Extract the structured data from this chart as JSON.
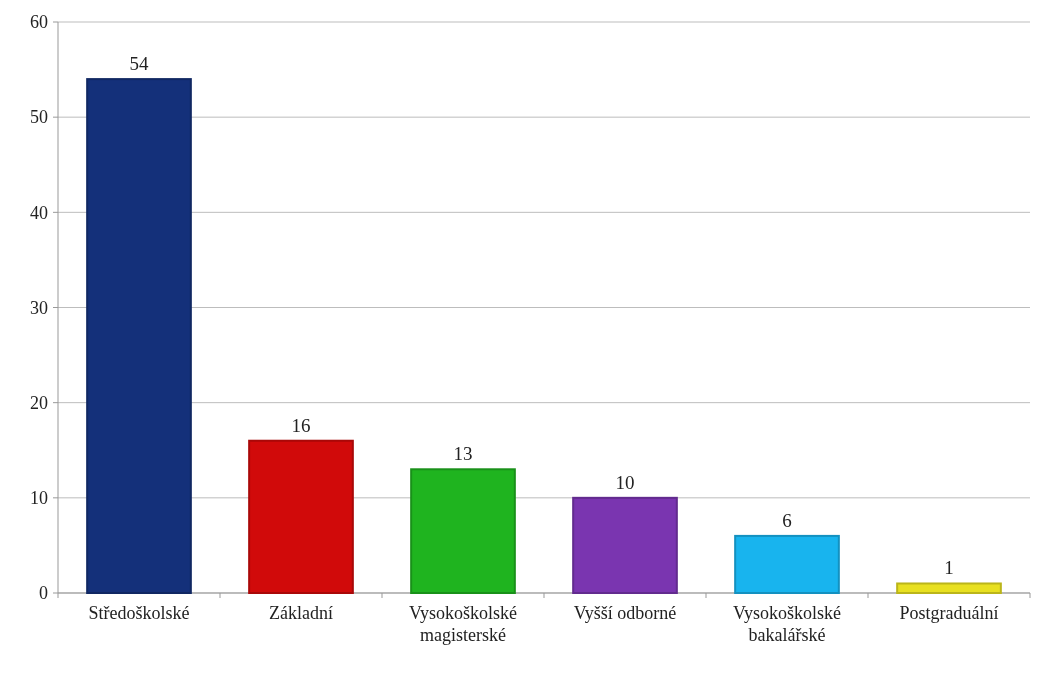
{
  "chart_data": {
    "type": "bar",
    "categories": [
      "Středoškolské",
      "Základní",
      "Vysokoškolské magisterské",
      "Vyšší odborné",
      "Vysokoškolské bakalářské",
      "Postgraduální"
    ],
    "values": [
      54,
      16,
      13,
      10,
      6,
      1
    ],
    "colors": [
      "#14307a",
      "#d10a0a",
      "#1fb41f",
      "#7a35b0",
      "#18b4ee",
      "#e8e020"
    ],
    "ylim": [
      0,
      60
    ],
    "yticks": [
      0,
      10,
      20,
      30,
      40,
      50,
      60
    ],
    "grid": "y",
    "data_labels": true
  }
}
